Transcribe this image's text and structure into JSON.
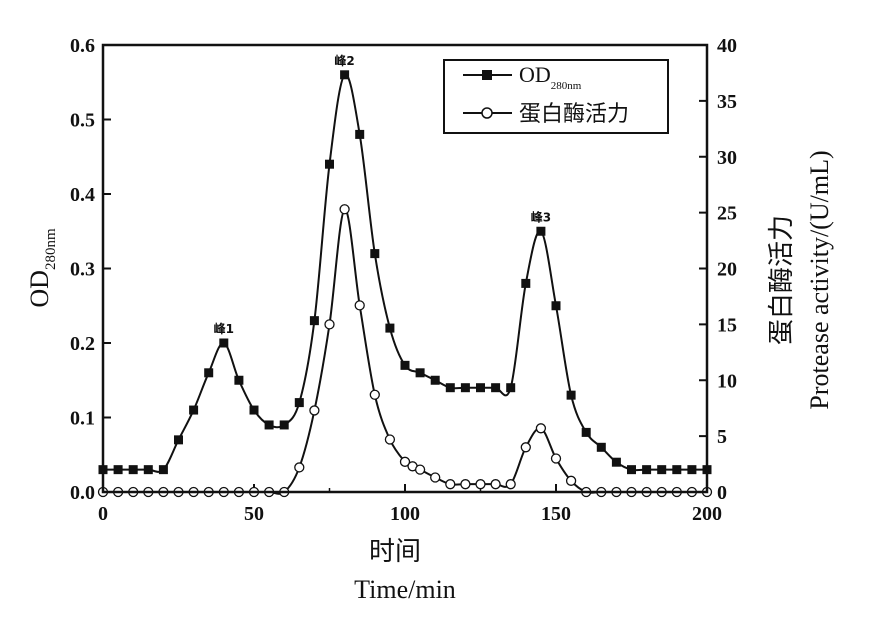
{
  "chart_data": {
    "type": "line",
    "xlabel_cn": "时间",
    "xlabel_en": "Time/min",
    "ylabel_left_main": "OD",
    "ylabel_left_sub": "280nm",
    "ylabel_right_cn": "蛋白酶活力",
    "ylabel_right_en": "Protease  activity/(U/mL)",
    "xlim": [
      0,
      200
    ],
    "ylim_left": [
      0,
      0.6
    ],
    "ylim_right": [
      0,
      40
    ],
    "x_ticks": [
      "0",
      "50",
      "100",
      "150",
      "200"
    ],
    "y_left_ticks": [
      "0.0",
      "0.1",
      "0.2",
      "0.3",
      "0.4",
      "0.5",
      "0.6"
    ],
    "y_right_ticks": [
      "0",
      "5",
      "10",
      "15",
      "20",
      "25",
      "30",
      "35",
      "40"
    ],
    "legend_position": "top-right",
    "series": [
      {
        "name_main": "OD",
        "name_sub": "280nm",
        "axis": "left",
        "marker": "filled-square",
        "color": "#111111",
        "x": [
          0,
          5,
          10,
          15,
          20,
          25,
          30,
          35,
          40,
          45,
          50,
          55,
          60,
          65,
          70,
          75,
          80,
          85,
          90,
          95,
          100,
          105,
          110,
          115,
          120,
          125,
          130,
          135,
          140,
          145,
          150,
          155,
          160,
          165,
          170,
          175,
          180,
          185,
          190,
          195,
          200
        ],
        "values": [
          0.03,
          0.03,
          0.03,
          0.03,
          0.03,
          0.07,
          0.11,
          0.16,
          0.2,
          0.15,
          0.11,
          0.09,
          0.09,
          0.12,
          0.23,
          0.44,
          0.56,
          0.48,
          0.32,
          0.22,
          0.17,
          0.16,
          0.15,
          0.14,
          0.14,
          0.14,
          0.14,
          0.14,
          0.28,
          0.35,
          0.25,
          0.13,
          0.08,
          0.06,
          0.04,
          0.03,
          0.03,
          0.03,
          0.03,
          0.03,
          0.03
        ]
      },
      {
        "name": "蛋白酶活力",
        "axis": "right",
        "marker": "open-circle",
        "color": "#111111",
        "x": [
          0,
          5,
          10,
          15,
          20,
          25,
          30,
          35,
          40,
          45,
          50,
          55,
          60,
          65,
          70,
          75,
          80,
          85,
          90,
          95,
          100,
          102.5,
          105,
          110,
          115,
          120,
          125,
          130,
          135,
          140,
          145,
          150,
          155,
          160,
          165,
          170,
          175,
          180,
          185,
          190,
          195,
          200
        ],
        "values": [
          0,
          0,
          0,
          0,
          0,
          0,
          0,
          0,
          0,
          0,
          0,
          0,
          0,
          2.2,
          7.3,
          15.0,
          25.3,
          16.7,
          8.7,
          4.7,
          2.7,
          2.3,
          2.0,
          1.3,
          0.7,
          0.7,
          0.7,
          0.7,
          0.7,
          4.0,
          5.7,
          3.0,
          1.0,
          0,
          0,
          0,
          0,
          0,
          0,
          0,
          0,
          0
        ]
      }
    ],
    "annotations": [
      {
        "text": "峰1",
        "x": 40,
        "y": 0.2
      },
      {
        "text": "峰2",
        "x": 80,
        "y": 0.56
      },
      {
        "text": "峰3",
        "x": 145,
        "y": 0.35
      }
    ]
  }
}
